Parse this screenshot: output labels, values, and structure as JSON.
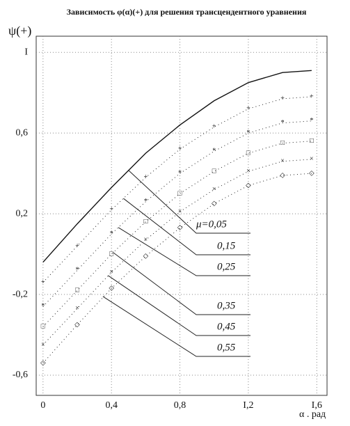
{
  "chart_data": {
    "type": "line",
    "title": "Зависимость φ(α)(+) для решения трансцендентного уравнения",
    "y_label": "ψ(+)",
    "x_label": "α . рад",
    "x": [
      0,
      0.2,
      0.4,
      0.6,
      0.8,
      1.0,
      1.2,
      1.4,
      1.57
    ],
    "series": [
      {
        "name": "μ=0,05",
        "color": "#111111",
        "marker": "",
        "values": [
          -0.04,
          0.15,
          0.33,
          0.5,
          0.64,
          0.76,
          0.85,
          0.9,
          0.91
        ]
      },
      {
        "name": "0,15",
        "color": "#222222",
        "marker": "+",
        "values": [
          -0.14,
          0.04,
          0.22,
          0.38,
          0.52,
          0.63,
          0.72,
          0.77,
          0.78
        ]
      },
      {
        "name": "0,25",
        "color": "#222222",
        "marker": "*",
        "values": [
          -0.26,
          -0.08,
          0.1,
          0.26,
          0.4,
          0.51,
          0.6,
          0.65,
          0.66
        ]
      },
      {
        "name": "0,35",
        "color": "#222222",
        "marker": "□",
        "values": [
          -0.36,
          -0.18,
          0.0,
          0.16,
          0.3,
          0.41,
          0.5,
          0.55,
          0.56
        ]
      },
      {
        "name": "0,45",
        "color": "#222222",
        "marker": "×",
        "values": [
          -0.45,
          -0.27,
          -0.09,
          0.07,
          0.21,
          0.32,
          0.41,
          0.46,
          0.47
        ]
      },
      {
        "name": "0,55",
        "color": "#222222",
        "marker": "◇",
        "values": [
          -0.54,
          -0.35,
          -0.17,
          -0.01,
          0.13,
          0.25,
          0.34,
          0.39,
          0.4
        ]
      }
    ],
    "xlim": [
      -0.04,
      1.66
    ],
    "ylim": [
      -0.7,
      1.08
    ],
    "xticks": [
      0,
      {
        "value": 0.4,
        "label": "0,4"
      },
      {
        "value": 0.8,
        "label": "0,8"
      },
      {
        "value": 1.2,
        "label": "I,2"
      },
      {
        "value": 1.6,
        "label": "I,6"
      }
    ],
    "yticks": [
      {
        "value": -0.6,
        "label": "-0,6"
      },
      {
        "value": -0.2,
        "label": "-0,2"
      },
      {
        "value": 0.2,
        "label": "0,2"
      },
      {
        "value": 0.6,
        "label": "0,6"
      },
      {
        "value": 1,
        "label": "I"
      }
    ],
    "grid": true
  }
}
